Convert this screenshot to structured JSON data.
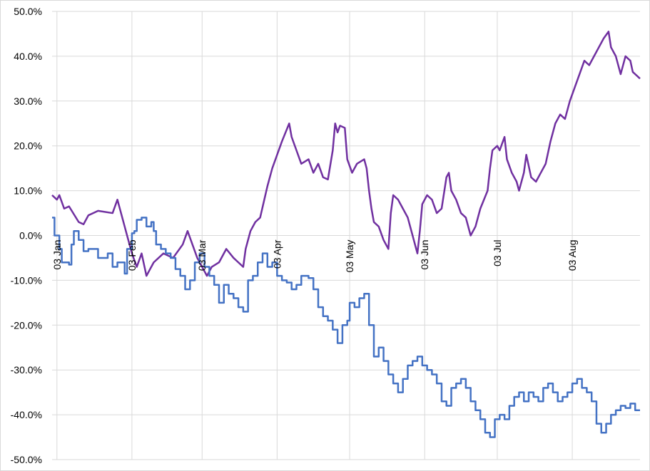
{
  "chart_data": {
    "type": "line",
    "title": "",
    "xlabel": "",
    "ylabel": "",
    "x_domain": [
      "2024-01-01",
      "2024-08-31"
    ],
    "ylim": [
      -50,
      50
    ],
    "y_ticks": [
      {
        "value": 50,
        "label": "50.0%"
      },
      {
        "value": 40,
        "label": "40.0%"
      },
      {
        "value": 30,
        "label": "30.0%"
      },
      {
        "value": 20,
        "label": "20.0%"
      },
      {
        "value": 10,
        "label": "10.0%"
      },
      {
        "value": 0,
        "label": "0.0%"
      },
      {
        "value": -10,
        "label": "-10.0%"
      },
      {
        "value": -20,
        "label": "-20.0%"
      },
      {
        "value": -30,
        "label": "-30.0%"
      },
      {
        "value": -40,
        "label": "-40.0%"
      },
      {
        "value": -50,
        "label": "-50.0%"
      }
    ],
    "x_ticks": [
      {
        "date": "2024-01-03",
        "label": "03 Jan"
      },
      {
        "date": "2024-02-03",
        "label": "03 Feb"
      },
      {
        "date": "2024-03-03",
        "label": "03 Mar"
      },
      {
        "date": "2024-04-03",
        "label": "03 Apr"
      },
      {
        "date": "2024-05-03",
        "label": "03 May"
      },
      {
        "date": "2024-06-03",
        "label": "03 Jun"
      },
      {
        "date": "2024-07-03",
        "label": "03 Jul"
      },
      {
        "date": "2024-08-03",
        "label": "03 Aug"
      }
    ],
    "grid": true,
    "series": [
      {
        "color": "#7030a0",
        "step": false,
        "points": [
          [
            "2024-01-01",
            9
          ],
          [
            "2024-01-03",
            8
          ],
          [
            "2024-01-04",
            9
          ],
          [
            "2024-01-06",
            6
          ],
          [
            "2024-01-08",
            6.5
          ],
          [
            "2024-01-12",
            3
          ],
          [
            "2024-01-14",
            2.5
          ],
          [
            "2024-01-16",
            4.5
          ],
          [
            "2024-01-20",
            5.5
          ],
          [
            "2024-01-26",
            5
          ],
          [
            "2024-01-28",
            8
          ],
          [
            "2024-02-03",
            -4
          ],
          [
            "2024-02-05",
            -7
          ],
          [
            "2024-02-07",
            -4
          ],
          [
            "2024-02-09",
            -9
          ],
          [
            "2024-02-12",
            -6
          ],
          [
            "2024-02-16",
            -4
          ],
          [
            "2024-02-20",
            -5
          ],
          [
            "2024-02-24",
            -2
          ],
          [
            "2024-02-26",
            1
          ],
          [
            "2024-03-01",
            -5
          ],
          [
            "2024-03-04",
            -8
          ],
          [
            "2024-03-05",
            -9
          ],
          [
            "2024-03-07",
            -7
          ],
          [
            "2024-03-10",
            -6
          ],
          [
            "2024-03-13",
            -3
          ],
          [
            "2024-03-16",
            -5
          ],
          [
            "2024-03-18",
            -6
          ],
          [
            "2024-03-20",
            -7
          ],
          [
            "2024-03-21",
            -3
          ],
          [
            "2024-03-23",
            1
          ],
          [
            "2024-03-25",
            3
          ],
          [
            "2024-03-27",
            4
          ],
          [
            "2024-03-30",
            11
          ],
          [
            "2024-04-01",
            15
          ],
          [
            "2024-04-03",
            18
          ],
          [
            "2024-04-05",
            21
          ],
          [
            "2024-04-08",
            25
          ],
          [
            "2024-04-09",
            22
          ],
          [
            "2024-04-11",
            19
          ],
          [
            "2024-04-13",
            16
          ],
          [
            "2024-04-16",
            17
          ],
          [
            "2024-04-18",
            14
          ],
          [
            "2024-04-20",
            16
          ],
          [
            "2024-04-22",
            13
          ],
          [
            "2024-04-24",
            12.5
          ],
          [
            "2024-04-26",
            19
          ],
          [
            "2024-04-27",
            25
          ],
          [
            "2024-04-28",
            23
          ],
          [
            "2024-04-29",
            24.5
          ],
          [
            "2024-05-01",
            24
          ],
          [
            "2024-05-02",
            17
          ],
          [
            "2024-05-04",
            14
          ],
          [
            "2024-05-06",
            16
          ],
          [
            "2024-05-09",
            17
          ],
          [
            "2024-05-10",
            15
          ],
          [
            "2024-05-11",
            10
          ],
          [
            "2024-05-12",
            6
          ],
          [
            "2024-05-13",
            3
          ],
          [
            "2024-05-15",
            2
          ],
          [
            "2024-05-17",
            -1
          ],
          [
            "2024-05-19",
            -3
          ],
          [
            "2024-05-20",
            5
          ],
          [
            "2024-05-21",
            9
          ],
          [
            "2024-05-23",
            8
          ],
          [
            "2024-05-25",
            6
          ],
          [
            "2024-05-27",
            4
          ],
          [
            "2024-05-29",
            0
          ],
          [
            "2024-05-31",
            -4
          ],
          [
            "2024-06-01",
            1
          ],
          [
            "2024-06-02",
            7
          ],
          [
            "2024-06-04",
            9
          ],
          [
            "2024-06-06",
            8
          ],
          [
            "2024-06-08",
            5
          ],
          [
            "2024-06-10",
            6
          ],
          [
            "2024-06-12",
            13
          ],
          [
            "2024-06-13",
            14
          ],
          [
            "2024-06-14",
            10
          ],
          [
            "2024-06-16",
            8
          ],
          [
            "2024-06-18",
            5
          ],
          [
            "2024-06-20",
            4
          ],
          [
            "2024-06-22",
            0
          ],
          [
            "2024-06-24",
            2
          ],
          [
            "2024-06-26",
            6
          ],
          [
            "2024-06-29",
            10
          ],
          [
            "2024-06-30",
            15
          ],
          [
            "2024-07-01",
            19
          ],
          [
            "2024-07-03",
            20
          ],
          [
            "2024-07-04",
            19
          ],
          [
            "2024-07-06",
            22
          ],
          [
            "2024-07-07",
            17
          ],
          [
            "2024-07-09",
            14
          ],
          [
            "2024-07-11",
            12
          ],
          [
            "2024-07-12",
            10
          ],
          [
            "2024-07-14",
            14
          ],
          [
            "2024-07-15",
            18
          ],
          [
            "2024-07-17",
            13
          ],
          [
            "2024-07-19",
            12
          ],
          [
            "2024-07-21",
            14
          ],
          [
            "2024-07-23",
            16
          ],
          [
            "2024-07-25",
            21
          ],
          [
            "2024-07-27",
            25
          ],
          [
            "2024-07-29",
            27
          ],
          [
            "2024-07-31",
            26
          ],
          [
            "2024-08-02",
            30
          ],
          [
            "2024-08-04",
            33
          ],
          [
            "2024-08-06",
            36
          ],
          [
            "2024-08-08",
            39
          ],
          [
            "2024-08-10",
            38
          ],
          [
            "2024-08-12",
            40
          ],
          [
            "2024-08-14",
            42
          ],
          [
            "2024-08-16",
            44
          ],
          [
            "2024-08-18",
            45.5
          ],
          [
            "2024-08-19",
            42
          ],
          [
            "2024-08-21",
            40
          ],
          [
            "2024-08-23",
            36
          ],
          [
            "2024-08-25",
            40
          ],
          [
            "2024-08-27",
            39
          ],
          [
            "2024-08-28",
            36.5
          ],
          [
            "2024-08-31",
            35
          ]
        ]
      },
      {
        "color": "#4472c4",
        "step": true,
        "points": [
          [
            "2024-01-01",
            4
          ],
          [
            "2024-01-02",
            0
          ],
          [
            "2024-01-04",
            -3
          ],
          [
            "2024-01-05",
            -6
          ],
          [
            "2024-01-08",
            -6.5
          ],
          [
            "2024-01-09",
            -2
          ],
          [
            "2024-01-10",
            1
          ],
          [
            "2024-01-12",
            -1
          ],
          [
            "2024-01-14",
            -3.5
          ],
          [
            "2024-01-16",
            -3
          ],
          [
            "2024-01-20",
            -5
          ],
          [
            "2024-01-24",
            -4
          ],
          [
            "2024-01-26",
            -7
          ],
          [
            "2024-01-28",
            -6
          ],
          [
            "2024-01-31",
            -8.5
          ],
          [
            "2024-02-01",
            -3
          ],
          [
            "2024-02-03",
            0.5
          ],
          [
            "2024-02-04",
            1
          ],
          [
            "2024-02-05",
            3.5
          ],
          [
            "2024-02-07",
            4
          ],
          [
            "2024-02-09",
            2
          ],
          [
            "2024-02-11",
            3
          ],
          [
            "2024-02-12",
            1
          ],
          [
            "2024-02-13",
            -2
          ],
          [
            "2024-02-15",
            -3
          ],
          [
            "2024-02-17",
            -4
          ],
          [
            "2024-02-19",
            -5
          ],
          [
            "2024-02-21",
            -7.5
          ],
          [
            "2024-02-23",
            -9
          ],
          [
            "2024-02-25",
            -12
          ],
          [
            "2024-02-27",
            -10
          ],
          [
            "2024-02-29",
            -6
          ],
          [
            "2024-03-02",
            -4
          ],
          [
            "2024-03-04",
            -7
          ],
          [
            "2024-03-06",
            -9
          ],
          [
            "2024-03-08",
            -11
          ],
          [
            "2024-03-10",
            -15
          ],
          [
            "2024-03-12",
            -11
          ],
          [
            "2024-03-14",
            -13
          ],
          [
            "2024-03-16",
            -14
          ],
          [
            "2024-03-18",
            -16
          ],
          [
            "2024-03-20",
            -17
          ],
          [
            "2024-03-22",
            -10
          ],
          [
            "2024-03-24",
            -9
          ],
          [
            "2024-03-26",
            -6
          ],
          [
            "2024-03-28",
            -4
          ],
          [
            "2024-03-30",
            -7
          ],
          [
            "2024-04-01",
            -6
          ],
          [
            "2024-04-03",
            -9
          ],
          [
            "2024-04-05",
            -10
          ],
          [
            "2024-04-07",
            -10.5
          ],
          [
            "2024-04-09",
            -12
          ],
          [
            "2024-04-11",
            -11
          ],
          [
            "2024-04-13",
            -9
          ],
          [
            "2024-04-16",
            -9.5
          ],
          [
            "2024-04-18",
            -12
          ],
          [
            "2024-04-20",
            -16
          ],
          [
            "2024-04-22",
            -18
          ],
          [
            "2024-04-24",
            -19
          ],
          [
            "2024-04-26",
            -21
          ],
          [
            "2024-04-28",
            -24
          ],
          [
            "2024-04-30",
            -20
          ],
          [
            "2024-05-02",
            -19
          ],
          [
            "2024-05-03",
            -15
          ],
          [
            "2024-05-05",
            -16
          ],
          [
            "2024-05-07",
            -14
          ],
          [
            "2024-05-09",
            -13
          ],
          [
            "2024-05-11",
            -20
          ],
          [
            "2024-05-13",
            -27
          ],
          [
            "2024-05-15",
            -25
          ],
          [
            "2024-05-17",
            -28
          ],
          [
            "2024-05-19",
            -31
          ],
          [
            "2024-05-21",
            -33
          ],
          [
            "2024-05-23",
            -35
          ],
          [
            "2024-05-25",
            -32
          ],
          [
            "2024-05-27",
            -29
          ],
          [
            "2024-05-29",
            -28
          ],
          [
            "2024-05-31",
            -27
          ],
          [
            "2024-06-02",
            -29
          ],
          [
            "2024-06-04",
            -30
          ],
          [
            "2024-06-06",
            -31
          ],
          [
            "2024-06-08",
            -33
          ],
          [
            "2024-06-10",
            -37
          ],
          [
            "2024-06-12",
            -38
          ],
          [
            "2024-06-14",
            -34
          ],
          [
            "2024-06-16",
            -33
          ],
          [
            "2024-06-18",
            -32
          ],
          [
            "2024-06-20",
            -34
          ],
          [
            "2024-06-22",
            -37
          ],
          [
            "2024-06-24",
            -39
          ],
          [
            "2024-06-26",
            -41
          ],
          [
            "2024-06-28",
            -44
          ],
          [
            "2024-06-30",
            -45
          ],
          [
            "2024-07-02",
            -41
          ],
          [
            "2024-07-04",
            -40
          ],
          [
            "2024-07-06",
            -41
          ],
          [
            "2024-07-08",
            -38
          ],
          [
            "2024-07-10",
            -36
          ],
          [
            "2024-07-12",
            -35
          ],
          [
            "2024-07-14",
            -37
          ],
          [
            "2024-07-16",
            -35
          ],
          [
            "2024-07-18",
            -36
          ],
          [
            "2024-07-20",
            -37
          ],
          [
            "2024-07-22",
            -34
          ],
          [
            "2024-07-24",
            -33
          ],
          [
            "2024-07-26",
            -35
          ],
          [
            "2024-07-28",
            -37
          ],
          [
            "2024-07-30",
            -36
          ],
          [
            "2024-08-01",
            -35
          ],
          [
            "2024-08-03",
            -33
          ],
          [
            "2024-08-05",
            -32
          ],
          [
            "2024-08-07",
            -34
          ],
          [
            "2024-08-09",
            -35
          ],
          [
            "2024-08-11",
            -37
          ],
          [
            "2024-08-13",
            -42
          ],
          [
            "2024-08-15",
            -44
          ],
          [
            "2024-08-17",
            -42
          ],
          [
            "2024-08-19",
            -40
          ],
          [
            "2024-08-21",
            -39
          ],
          [
            "2024-08-23",
            -38
          ],
          [
            "2024-08-25",
            -38.5
          ],
          [
            "2024-08-27",
            -37.5
          ],
          [
            "2024-08-29",
            -39
          ],
          [
            "2024-08-31",
            -39
          ]
        ]
      }
    ]
  }
}
